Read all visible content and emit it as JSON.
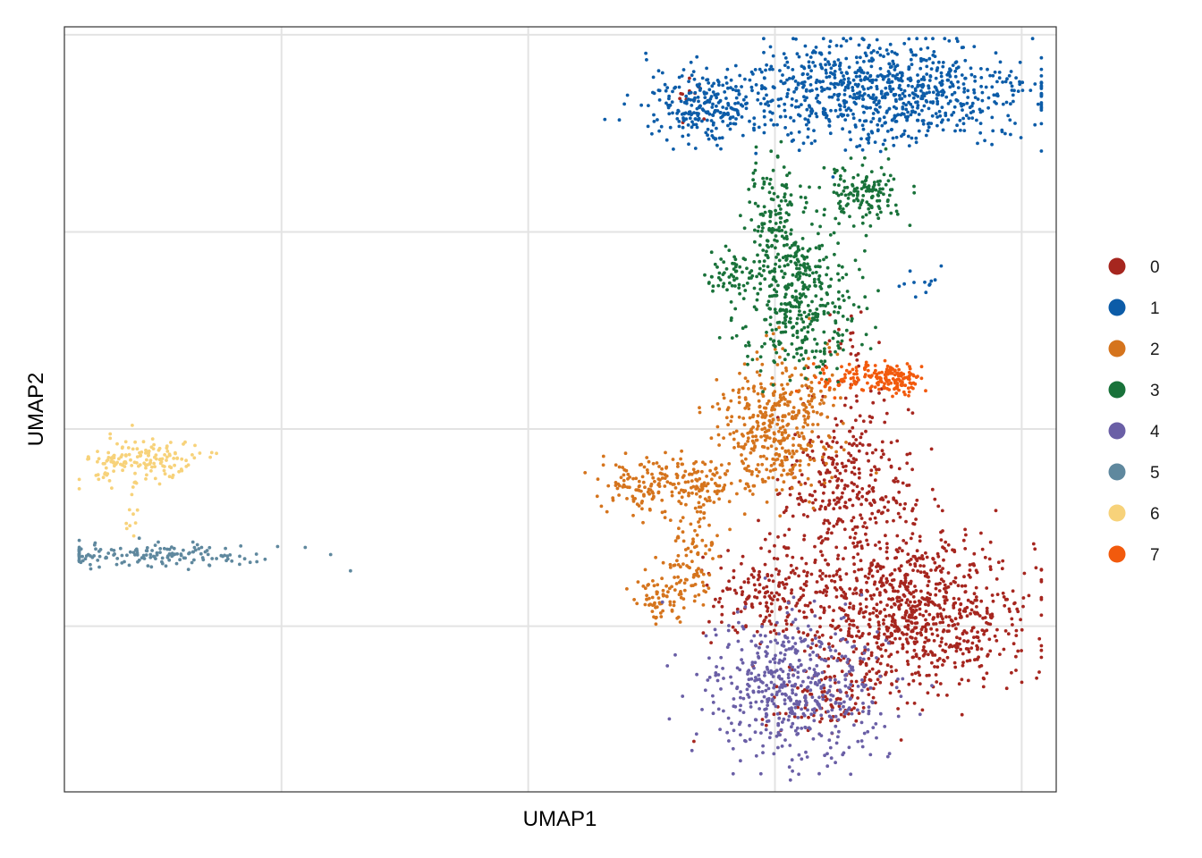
{
  "chart_data": {
    "type": "scatter",
    "title": "",
    "xlabel": "UMAP1",
    "ylabel": "UMAP2",
    "xlim": [
      -12.9,
      7.2
    ],
    "ylim": [
      -9.2,
      10.2
    ],
    "x_gridlines": [
      -8.5,
      -3.5,
      1.5,
      6.5
    ],
    "y_gridlines": [
      -5,
      0,
      5,
      10
    ],
    "tick_labels_shown": false,
    "grid": true,
    "legend_position": "right",
    "colors": {
      "0": "#A6261F",
      "1": "#0C5CA8",
      "2": "#D5741D",
      "3": "#19723A",
      "4": "#6A5FA6",
      "5": "#5F889E",
      "6": "#F7D27A",
      "7": "#F25A0D"
    },
    "legend": [
      "0",
      "1",
      "2",
      "3",
      "4",
      "5",
      "6",
      "7"
    ],
    "clusters": [
      {
        "name": "0",
        "regions": [
          {
            "cx": 4.3,
            "cy": -4.6,
            "sx": 1.2,
            "sy": 1.0,
            "n": 900
          },
          {
            "cx": 3.0,
            "cy": -1.4,
            "sx": 0.65,
            "sy": 1.0,
            "n": 320
          },
          {
            "cx": 1.4,
            "cy": -4.2,
            "sx": 0.7,
            "sy": 0.6,
            "n": 170
          },
          {
            "cx": 2.6,
            "cy": -6.8,
            "sx": 0.7,
            "sy": 0.4,
            "n": 90
          },
          {
            "cx": -0.1,
            "cy": 8.4,
            "sx": 0.25,
            "sy": 0.25,
            "n": 12
          },
          {
            "cx": 3.0,
            "cy": 2.0,
            "sx": 0.2,
            "sy": 0.5,
            "n": 25
          }
        ]
      },
      {
        "name": "1",
        "regions": [
          {
            "cx": 3.5,
            "cy": 8.5,
            "sx": 1.7,
            "sy": 0.65,
            "n": 900
          },
          {
            "cx": 0.1,
            "cy": 8.2,
            "sx": 0.5,
            "sy": 0.45,
            "n": 200
          },
          {
            "cx": 4.4,
            "cy": 3.8,
            "sx": 0.25,
            "sy": 0.2,
            "n": 12
          }
        ]
      },
      {
        "name": "2",
        "regions": [
          {
            "cx": 1.5,
            "cy": 0.1,
            "sx": 0.55,
            "sy": 0.9,
            "n": 420
          },
          {
            "cx": -0.6,
            "cy": -1.4,
            "sx": 0.7,
            "sy": 0.35,
            "n": 220
          },
          {
            "cx": -0.2,
            "cy": -3.4,
            "sx": 0.3,
            "sy": 0.6,
            "n": 100
          },
          {
            "cx": -0.8,
            "cy": -4.3,
            "sx": 0.25,
            "sy": 0.3,
            "n": 60
          }
        ]
      },
      {
        "name": "3",
        "regions": [
          {
            "cx": 2.0,
            "cy": 3.4,
            "sx": 0.6,
            "sy": 0.9,
            "n": 420
          },
          {
            "cx": 1.5,
            "cy": 5.5,
            "sx": 0.3,
            "sy": 0.6,
            "n": 120
          },
          {
            "cx": 3.3,
            "cy": 6.0,
            "sx": 0.4,
            "sy": 0.4,
            "n": 140
          },
          {
            "cx": 0.6,
            "cy": 3.9,
            "sx": 0.25,
            "sy": 0.25,
            "n": 50
          }
        ]
      },
      {
        "name": "4",
        "regions": [
          {
            "cx": 1.9,
            "cy": -6.6,
            "sx": 0.9,
            "sy": 0.9,
            "n": 520
          }
        ]
      },
      {
        "name": "5",
        "regions": [
          {
            "cx": -11.2,
            "cy": -3.2,
            "sx": 1.3,
            "sy": 0.15,
            "n": 170
          }
        ]
      },
      {
        "name": "6",
        "regions": [
          {
            "cx": -11.6,
            "cy": -0.8,
            "sx": 0.45,
            "sy": 0.3,
            "n": 120
          },
          {
            "cx": -10.6,
            "cy": -0.8,
            "sx": 0.3,
            "sy": 0.2,
            "n": 40
          },
          {
            "cx": -11.5,
            "cy": -2.0,
            "sx": 0.1,
            "sy": 0.4,
            "n": 10
          }
        ]
      },
      {
        "name": "7",
        "regions": [
          {
            "cx": 3.4,
            "cy": 1.3,
            "sx": 0.55,
            "sy": 0.2,
            "n": 120
          },
          {
            "cx": 4.0,
            "cy": 1.2,
            "sx": 0.2,
            "sy": 0.2,
            "n": 60
          }
        ]
      }
    ]
  }
}
